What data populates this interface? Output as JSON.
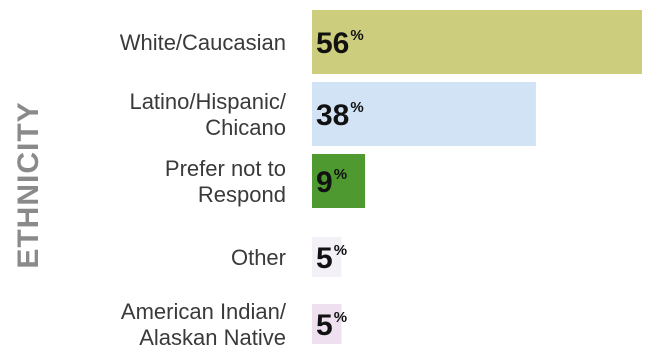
{
  "chart_data": {
    "type": "bar",
    "orientation": "horizontal",
    "ylabel": "ETHNICITY",
    "categories": [
      [
        "White/Caucasian"
      ],
      [
        "Latino/Hispanic/",
        "Chicano"
      ],
      [
        "Prefer not to",
        "Respond"
      ],
      [
        "Other"
      ],
      [
        "American Indian/",
        "Alaskan Native"
      ]
    ],
    "values": [
      56,
      38,
      9,
      5,
      5
    ],
    "value_suffix": "%",
    "colors": [
      "#ccce7e",
      "#d2e3f5",
      "#4e9a31",
      "#f3f0f7",
      "#eee0ef"
    ],
    "xlim": [
      0,
      56
    ],
    "grid": false,
    "legend": "none"
  }
}
